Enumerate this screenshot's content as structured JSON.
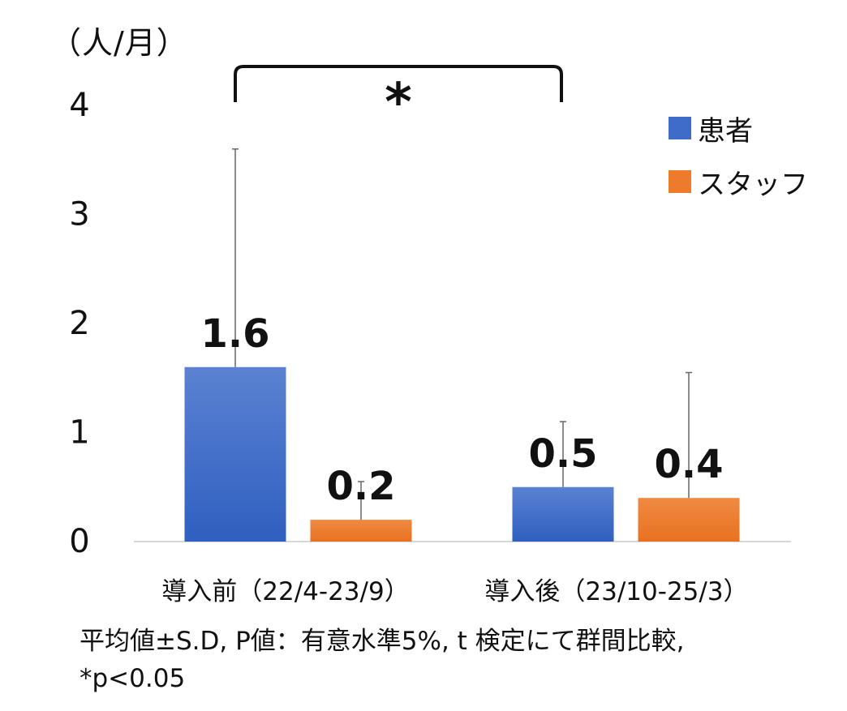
{
  "unit_label": "（人/月）",
  "significance_mark": "*",
  "footnote_line1": "平均値±S.D, P値：有意水準5%,  t 検定にて群間比較,",
  "footnote_line2": "*p<0.05",
  "colors": {
    "patient": "#3F6CC8",
    "staff": "#EE7A2C",
    "axis": "#cccccc",
    "errorbar": "#666666"
  },
  "chart_data": {
    "type": "bar",
    "categories": [
      "導入前（22/4-23/9）",
      "導入後（23/10-25/3）"
    ],
    "series": [
      {
        "name": "患者",
        "values": [
          1.6,
          0.5
        ],
        "sd": [
          2.0,
          0.6
        ]
      },
      {
        "name": "スタッフ",
        "values": [
          0.2,
          0.4
        ],
        "sd": [
          0.35,
          1.15
        ]
      }
    ],
    "data_labels": [
      [
        "1.6",
        "0.5"
      ],
      [
        "0.2",
        "0.4"
      ]
    ],
    "ylim": [
      0,
      4
    ],
    "yticks": [
      "0",
      "1",
      "2",
      "3",
      "4"
    ],
    "grid": false,
    "legend": "top-right"
  }
}
